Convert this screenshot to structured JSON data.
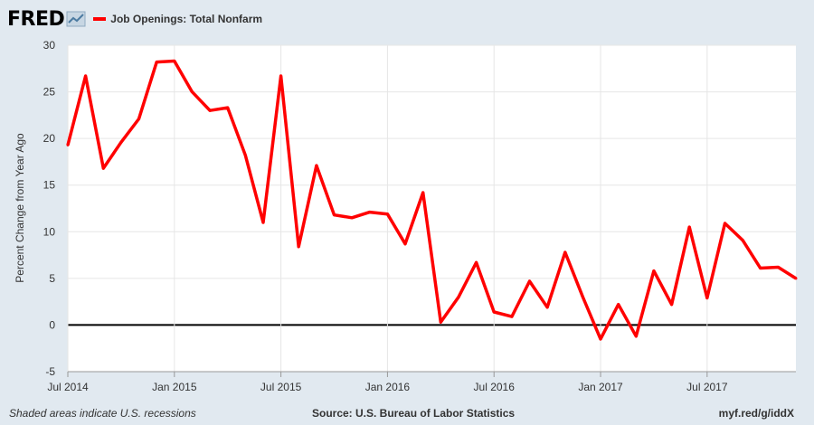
{
  "header": {
    "logo_text": "FRED",
    "legend_label": "Job Openings: Total Nonfarm",
    "series_color": "#ff0000"
  },
  "footer": {
    "note": "Shaded areas indicate U.S. recessions",
    "source": "Source: U.S. Bureau of Labor Statistics",
    "url": "myf.red/g/iddX"
  },
  "chart_data": {
    "type": "line",
    "ylabel": "Percent Change from Year Ago",
    "ylim": [
      -5,
      30
    ],
    "yticks": [
      -5,
      0,
      5,
      10,
      15,
      20,
      25,
      30
    ],
    "xticks": [
      "Jul 2014",
      "Jan 2015",
      "Jul 2015",
      "Jan 2016",
      "Jul 2016",
      "Jan 2017",
      "Jul 2017"
    ],
    "x_start": "Jul 2014",
    "x_end": "Dec 2017",
    "grid": true,
    "zero_line": true,
    "series": [
      {
        "name": "Job Openings: Total Nonfarm",
        "color": "#ff0000",
        "x": [
          "Jul 2014",
          "Aug 2014",
          "Sep 2014",
          "Oct 2014",
          "Nov 2014",
          "Dec 2014",
          "Jan 2015",
          "Feb 2015",
          "Mar 2015",
          "Apr 2015",
          "May 2015",
          "Jun 2015",
          "Jul 2015",
          "Aug 2015",
          "Sep 2015",
          "Oct 2015",
          "Nov 2015",
          "Dec 2015",
          "Jan 2016",
          "Feb 2016",
          "Mar 2016",
          "Apr 2016",
          "May 2016",
          "Jun 2016",
          "Jul 2016",
          "Aug 2016",
          "Sep 2016",
          "Oct 2016",
          "Nov 2016",
          "Dec 2016",
          "Jan 2017",
          "Feb 2017",
          "Mar 2017",
          "Apr 2017",
          "May 2017",
          "Jun 2017",
          "Jul 2017",
          "Aug 2017",
          "Sep 2017",
          "Oct 2017",
          "Nov 2017",
          "Dec 2017"
        ],
        "values": [
          19.3,
          26.7,
          16.8,
          19.6,
          22.1,
          28.2,
          28.3,
          25.0,
          23.0,
          23.3,
          18.2,
          11.0,
          26.7,
          8.4,
          17.1,
          11.8,
          11.5,
          12.1,
          11.9,
          8.7,
          14.2,
          0.3,
          3.0,
          6.7,
          1.4,
          0.9,
          4.7,
          1.9,
          7.8,
          3.0,
          -1.5,
          2.2,
          -1.2,
          5.8,
          2.2,
          10.5,
          2.9,
          10.9,
          9.1,
          6.1,
          6.2,
          5.0
        ]
      }
    ]
  }
}
